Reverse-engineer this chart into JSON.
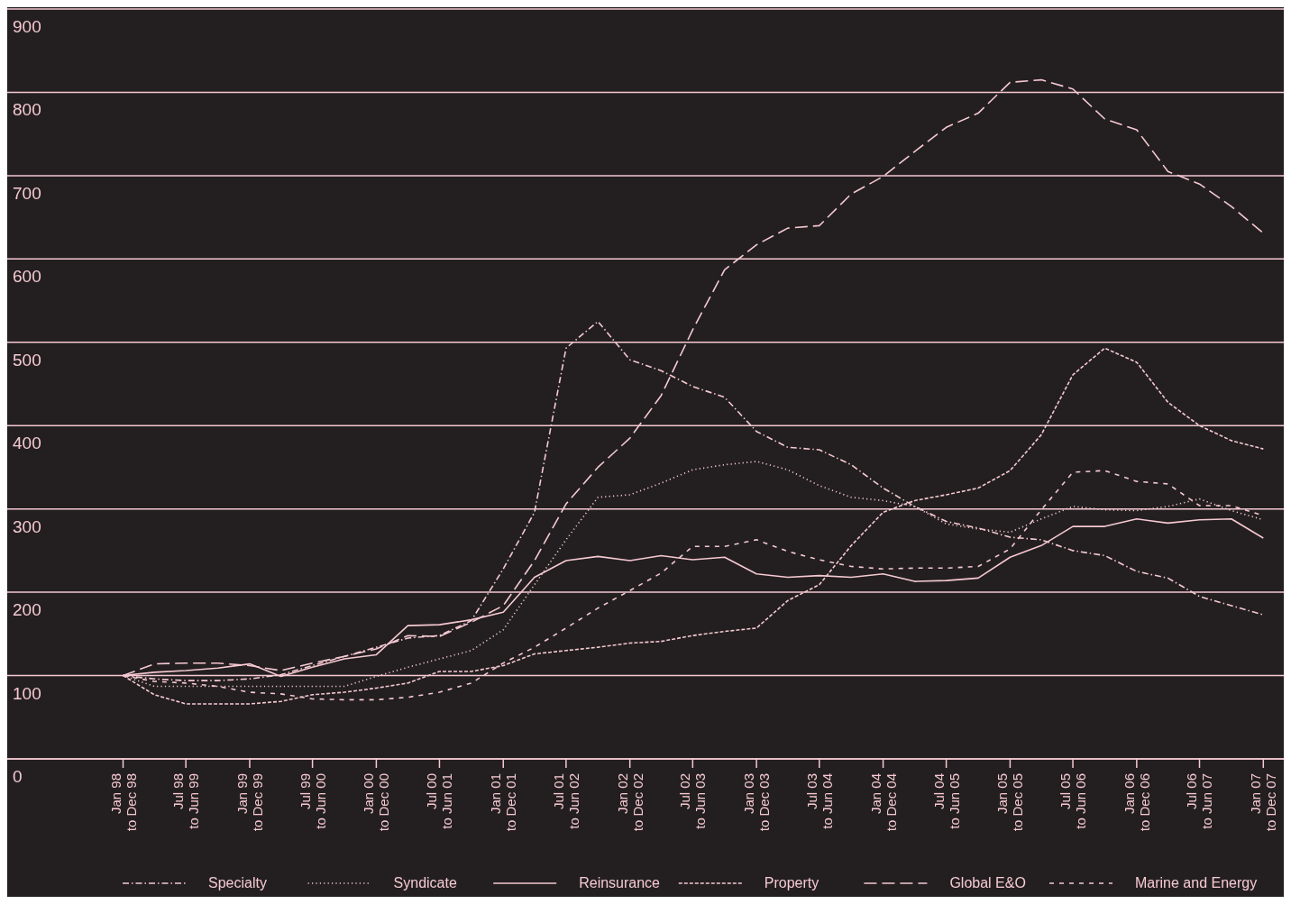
{
  "chart_data": {
    "type": "line",
    "x": [
      "1998-01",
      "1998-04",
      "1998-07",
      "1998-10",
      "1999-01",
      "1999-04",
      "1999-07",
      "1999-10",
      "2000-01",
      "2000-04",
      "2000-07",
      "2000-10",
      "2001-01",
      "2001-04",
      "2001-07",
      "2001-10",
      "2002-01",
      "2002-04",
      "2002-07",
      "2002-10",
      "2003-01",
      "2003-04",
      "2003-07",
      "2003-10",
      "2004-01",
      "2004-04",
      "2004-07",
      "2004-10",
      "2005-01",
      "2005-04",
      "2005-07",
      "2005-10",
      "2006-01",
      "2006-04",
      "2006-07",
      "2006-10",
      "2007-01"
    ],
    "series": [
      {
        "name": "Specialty",
        "color": "#f6c9d2",
        "line_style": "dashdot",
        "values": [
          100,
          96,
          94,
          94,
          96,
          101,
          112,
          123,
          134,
          145,
          148,
          166,
          228,
          296,
          493,
          525,
          479,
          466,
          447,
          434,
          393,
          374,
          371,
          353,
          325,
          303,
          285,
          277,
          266,
          263,
          250,
          244,
          225,
          217,
          195,
          184,
          173
        ]
      },
      {
        "name": "Syndicate",
        "color": "#f6c9d2",
        "line_style": "dotted",
        "values": [
          100,
          87,
          87,
          87,
          87,
          87,
          87,
          87,
          99,
          110,
          120,
          130,
          155,
          209,
          263,
          314,
          317,
          331,
          347,
          353,
          357,
          347,
          328,
          314,
          310,
          303,
          282,
          276,
          272,
          288,
          303,
          299,
          298,
          303,
          312,
          298,
          287
        ]
      },
      {
        "name": "Reinsurance",
        "color": "#f6c9d2",
        "line_style": "solid",
        "values": [
          100,
          104,
          106,
          109,
          114,
          99,
          110,
          120,
          125,
          160,
          161,
          167,
          176,
          218,
          238,
          243,
          238,
          244,
          239,
          242,
          222,
          218,
          220,
          218,
          222,
          213,
          214,
          217,
          242,
          256,
          279,
          279,
          288,
          283,
          287,
          288,
          265
        ]
      },
      {
        "name": "Property",
        "color": "#f6c9d2",
        "line_style": "dashed",
        "values": [
          100,
          77,
          66,
          66,
          66,
          69,
          77,
          80,
          85,
          91,
          105,
          105,
          112,
          126,
          130,
          134,
          139,
          141,
          148,
          153,
          157,
          190,
          209,
          256,
          296,
          310,
          317,
          325,
          346,
          389,
          461,
          493,
          476,
          428,
          400,
          382,
          372
        ]
      },
      {
        "name": "Global E&O",
        "color": "#f6c9d2",
        "line_style": "longdash",
        "values": [
          100,
          114,
          115,
          115,
          112,
          106,
          115,
          123,
          132,
          148,
          147,
          164,
          184,
          238,
          306,
          350,
          385,
          436,
          515,
          587,
          617,
          637,
          640,
          678,
          699,
          729,
          758,
          775,
          812,
          815,
          804,
          768,
          755,
          705,
          690,
          663,
          631
        ]
      },
      {
        "name": "Marine and Energy",
        "color": "#f6c9d2",
        "line_style": "loosedash",
        "values": [
          100,
          93,
          91,
          87,
          80,
          78,
          72,
          71,
          71,
          74,
          80,
          91,
          115,
          134,
          157,
          181,
          202,
          223,
          255,
          255,
          263,
          249,
          239,
          231,
          228,
          229,
          229,
          231,
          252,
          299,
          344,
          346,
          333,
          330,
          304,
          304,
          292
        ]
      }
    ],
    "xlim": [
      "1997-02",
      "2007-03"
    ],
    "xticks": [
      {
        "value": "1998-01",
        "label": "Jan 98 to Dec 98"
      },
      {
        "value": "1998-07",
        "label": "Jul 98 to Jun 99"
      },
      {
        "value": "1999-01",
        "label": "Jan 99 to Dec 99"
      },
      {
        "value": "1999-07",
        "label": "Jul 99 to Jun 00"
      },
      {
        "value": "2000-01",
        "label": "Jan 00 to Dec 00"
      },
      {
        "value": "2000-07",
        "label": "Jul 00 to Jun 01"
      },
      {
        "value": "2001-01",
        "label": "Jan 01 to Dec 01"
      },
      {
        "value": "2001-07",
        "label": "Jul 01 to Jun 02"
      },
      {
        "value": "2002-01",
        "label": "Jan 02 to Dec 02"
      },
      {
        "value": "2002-07",
        "label": "Jul 02 to Jun 03"
      },
      {
        "value": "2003-01",
        "label": "Jan 03 to Dec 03"
      },
      {
        "value": "2003-07",
        "label": "Jul 03 to Jun 04"
      },
      {
        "value": "2004-01",
        "label": "Jan 04 to Dec 04"
      },
      {
        "value": "2004-07",
        "label": "Jul 04 to Jun 05"
      },
      {
        "value": "2005-01",
        "label": "Jan 05 to Dec 05"
      },
      {
        "value": "2005-07",
        "label": "Jul 05 to Jun 06"
      },
      {
        "value": "2006-01",
        "label": "Jan 06 to Dec 06"
      },
      {
        "value": "2006-07",
        "label": "Jul 06 to Jun 07"
      },
      {
        "value": "2007-01",
        "label": "Jan 07 to Dec 07"
      }
    ],
    "ylim": [
      0,
      900
    ],
    "yticks": [
      0,
      100,
      200,
      300,
      400,
      500,
      600,
      700,
      800,
      900
    ],
    "grid": "y",
    "legend": "bottom"
  }
}
